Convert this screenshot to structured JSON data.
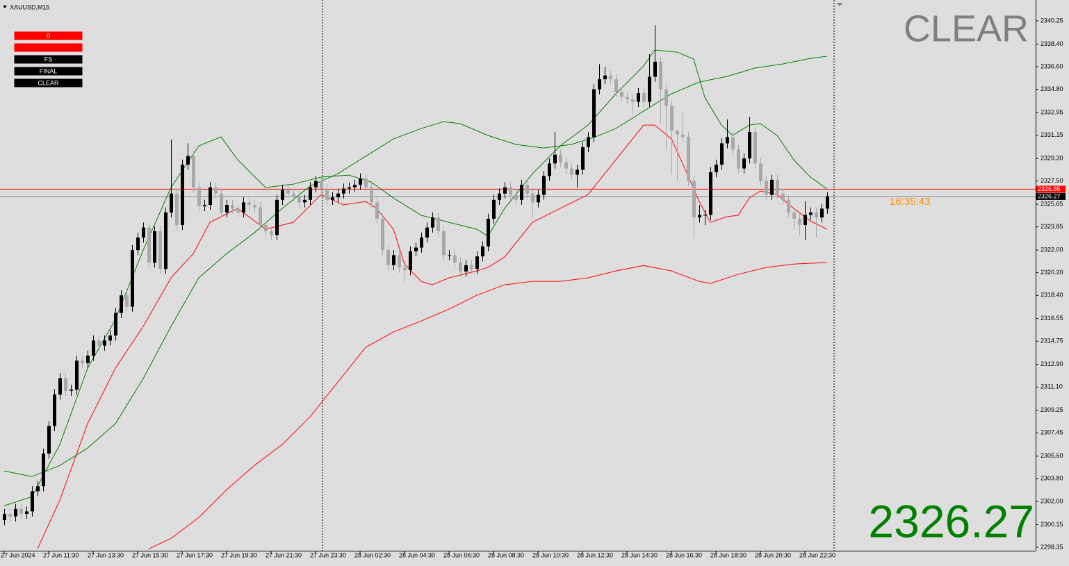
{
  "chart_data": {
    "type": "candlestick",
    "title": "XAUUSD,M15",
    "categories": [
      "27 Jun 2024",
      "27 Jun 11:30",
      "27 Jun 13:30",
      "27 Jun 15:30",
      "27 Jun 17:30",
      "27 Jun 19:30",
      "27 Jun 21:30",
      "27 Jun 23:30",
      "28 Jun 02:30",
      "28 Jun 04:30",
      "28 Jun 06:30",
      "28 Jun 08:30",
      "28 Jun 10:30",
      "28 Jun 12:30",
      "28 Jun 14:30",
      "28 Jun 16:30",
      "28 Jun 18:30",
      "28 Jun 20:30",
      "28 Jun 22:30"
    ],
    "open": [
      2300.5,
      2301.0,
      2300.8,
      2301.4,
      2301.0,
      2301.2,
      2302.8,
      2303.2,
      2305.8,
      2308.0,
      2310.5,
      2311.8,
      2310.8,
      2310.9,
      2313.2,
      2313.0,
      2313.6,
      2314.8,
      2314.4,
      2314.8,
      2315.2,
      2317.0,
      2318.4,
      2317.5,
      2322.0,
      2323.0,
      2323.8,
      2321.0,
      2323.5,
      2320.5,
      2325.0,
      2326.5,
      2324.0,
      2328.8,
      2329.5,
      2327.0,
      2325.5,
      2325.6,
      2327.0,
      2326.5,
      2325.0,
      2325.6,
      2325.3,
      2325.0,
      2325.8,
      2325.6,
      2325.4,
      2324.0,
      2323.5,
      2323.2,
      2326.0,
      2326.8,
      2326.5,
      2326.3,
      2325.8,
      2326.0,
      2327.0,
      2327.5,
      2326.9,
      2326.0,
      2326.2,
      2326.5,
      2326.9,
      2327.0,
      2327.2,
      2327.7,
      2327.0,
      2325.8,
      2324.5,
      2322.0,
      2320.8,
      2321.6,
      2320.6,
      2320.4,
      2321.9,
      2322.2,
      2323.0,
      2323.8,
      2324.6,
      2323.5,
      2321.6,
      2321.6,
      2321.0,
      2320.3,
      2320.8,
      2320.5,
      2321.5,
      2322.3,
      2324.5,
      2326.0,
      2326.5,
      2327.0,
      2326.4,
      2326.0,
      2327.2,
      2326.5,
      2325.8,
      2326.4,
      2327.9,
      2328.9,
      2329.6,
      2329.0,
      2328.5,
      2328.0,
      2328.4,
      2330.2,
      2331.0,
      2334.8,
      2335.6,
      2335.9,
      2335.6,
      2334.6,
      2334.2,
      2334.0,
      2333.8,
      2334.5,
      2333.8,
      2335.8,
      2337.0,
      2334.8,
      2333.5,
      2331.5,
      2331.2,
      2331.0,
      2327.5,
      2324.6,
      2324.8,
      2324.8,
      2328.2,
      2328.8,
      2330.5,
      2331.0,
      2330.0,
      2328.5,
      2329.3,
      2331.4,
      2328.9,
      2327.5,
      2326.4,
      2327.6,
      2326.5,
      2326.0,
      2325.0,
      2324.5,
      2324.0,
      2324.8,
      2325.0,
      2324.6,
      2325.3
    ],
    "high": [
      2301.4,
      2301.4,
      2301.8,
      2301.8,
      2301.6,
      2303.2,
      2303.6,
      2306.2,
      2308.4,
      2310.9,
      2312.2,
      2312.2,
      2311.3,
      2313.6,
      2313.6,
      2314.0,
      2315.2,
      2315.2,
      2315.2,
      2315.6,
      2317.4,
      2318.8,
      2318.8,
      2322.4,
      2323.4,
      2324.2,
      2324.2,
      2323.9,
      2323.9,
      2325.4,
      2330.8,
      2326.9,
      2329.2,
      2330.5,
      2329.9,
      2327.4,
      2326.0,
      2327.4,
      2327.4,
      2326.9,
      2326.0,
      2326.0,
      2325.7,
      2326.2,
      2326.2,
      2326.0,
      2325.8,
      2324.4,
      2323.9,
      2326.4,
      2327.2,
      2327.2,
      2326.9,
      2326.7,
      2326.4,
      2327.4,
      2327.9,
      2327.9,
      2327.3,
      2326.6,
      2326.9,
      2327.3,
      2327.4,
      2327.6,
      2328.1,
      2328.1,
      2327.4,
      2326.2,
      2324.9,
      2322.4,
      2322.0,
      2322.0,
      2321.0,
      2322.3,
      2322.6,
      2323.4,
      2324.2,
      2325.0,
      2325.0,
      2323.9,
      2322.0,
      2322.0,
      2321.4,
      2321.2,
      2321.2,
      2321.9,
      2322.7,
      2324.9,
      2326.4,
      2326.9,
      2327.4,
      2327.4,
      2326.8,
      2327.6,
      2327.6,
      2326.9,
      2326.8,
      2328.3,
      2329.3,
      2331.4,
      2330.0,
      2329.4,
      2328.9,
      2328.8,
      2330.6,
      2331.4,
      2335.2,
      2336.8,
      2336.6,
      2336.3,
      2336.0,
      2335.0,
      2334.6,
      2334.4,
      2334.9,
      2334.9,
      2337.6,
      2339.9,
      2337.4,
      2335.2,
      2333.9,
      2331.6,
      2333.0,
      2331.4,
      2327.9,
      2325.6,
      2325.2,
      2328.6,
      2329.2,
      2330.9,
      2332.4,
      2331.4,
      2330.4,
      2329.7,
      2332.6,
      2331.8,
      2329.3,
      2327.9,
      2328.0,
      2328.0,
      2326.9,
      2326.4,
      2325.4,
      2324.9,
      2325.9,
      2325.4,
      2325.4,
      2325.7,
      2326.6
    ],
    "low": [
      2300.1,
      2300.4,
      2300.4,
      2300.6,
      2300.6,
      2300.8,
      2302.4,
      2302.8,
      2305.4,
      2307.6,
      2310.1,
      2310.4,
      2310.4,
      2310.5,
      2312.6,
      2312.6,
      2313.2,
      2314.0,
      2314.0,
      2314.4,
      2314.8,
      2316.6,
      2317.1,
      2317.1,
      2321.6,
      2322.6,
      2320.6,
      2320.6,
      2320.1,
      2320.1,
      2324.6,
      2323.6,
      2323.6,
      2328.4,
      2326.6,
      2325.1,
      2325.1,
      2325.2,
      2326.1,
      2324.6,
      2324.6,
      2324.9,
      2324.6,
      2324.6,
      2325.2,
      2325.0,
      2323.6,
      2323.1,
      2322.8,
      2322.8,
      2325.6,
      2326.1,
      2325.9,
      2325.4,
      2325.4,
      2325.6,
      2326.6,
      2326.5,
      2325.6,
      2325.6,
      2325.8,
      2326.1,
      2326.5,
      2326.6,
      2326.8,
      2326.6,
      2325.4,
      2324.1,
      2321.6,
      2320.4,
      2320.4,
      2320.2,
      2319.5,
      2320.0,
      2321.5,
      2321.8,
      2322.6,
      2323.4,
      2323.1,
      2321.2,
      2321.2,
      2320.6,
      2319.9,
      2319.9,
      2320.1,
      2320.1,
      2321.1,
      2321.9,
      2324.1,
      2325.6,
      2326.1,
      2326.0,
      2325.6,
      2325.6,
      2326.1,
      2324.6,
      2325.4,
      2326.0,
      2327.5,
      2328.5,
      2328.6,
      2328.1,
      2327.6,
      2327.0,
      2328.0,
      2329.8,
      2330.6,
      2334.4,
      2335.2,
      2335.2,
      2334.2,
      2333.8,
      2333.6,
      2332.8,
      2333.4,
      2333.4,
      2333.4,
      2335.4,
      2332.0,
      2330.0,
      2328.0,
      2327.5,
      2330.6,
      2327.1,
      2323.0,
      2324.2,
      2324.0,
      2324.4,
      2327.8,
      2328.4,
      2330.1,
      2329.6,
      2328.1,
      2328.1,
      2328.9,
      2328.5,
      2327.1,
      2326.0,
      2326.0,
      2326.1,
      2325.6,
      2324.6,
      2323.6,
      2323.2,
      2322.8,
      2324.4,
      2323.0,
      2324.2,
      2324.9
    ],
    "close": [
      2301.0,
      2300.8,
      2301.4,
      2301.0,
      2301.2,
      2302.8,
      2303.2,
      2305.8,
      2308.0,
      2310.5,
      2311.8,
      2310.8,
      2310.9,
      2313.2,
      2313.0,
      2313.6,
      2314.8,
      2314.4,
      2314.8,
      2315.2,
      2317.0,
      2318.4,
      2317.5,
      2322.0,
      2323.0,
      2323.8,
      2321.0,
      2323.5,
      2320.5,
      2325.0,
      2326.5,
      2324.0,
      2328.8,
      2329.5,
      2327.0,
      2325.5,
      2325.6,
      2327.0,
      2326.5,
      2325.0,
      2325.6,
      2325.3,
      2325.0,
      2325.8,
      2325.6,
      2325.4,
      2324.0,
      2323.5,
      2323.2,
      2326.0,
      2326.8,
      2326.5,
      2326.3,
      2325.8,
      2326.0,
      2327.0,
      2327.5,
      2326.9,
      2326.0,
      2326.2,
      2326.5,
      2326.9,
      2327.0,
      2327.2,
      2327.7,
      2327.0,
      2325.8,
      2324.5,
      2322.0,
      2320.8,
      2321.6,
      2320.6,
      2320.4,
      2321.9,
      2322.2,
      2323.0,
      2323.8,
      2324.6,
      2323.5,
      2321.6,
      2321.6,
      2321.0,
      2320.3,
      2320.8,
      2320.5,
      2321.5,
      2322.3,
      2324.5,
      2326.0,
      2326.5,
      2327.0,
      2326.4,
      2326.0,
      2327.2,
      2326.5,
      2325.8,
      2326.4,
      2327.9,
      2328.9,
      2329.6,
      2329.0,
      2328.5,
      2328.0,
      2328.4,
      2330.2,
      2331.0,
      2334.8,
      2335.6,
      2335.9,
      2335.6,
      2334.6,
      2334.2,
      2334.0,
      2333.8,
      2334.5,
      2333.8,
      2335.8,
      2337.0,
      2334.8,
      2333.5,
      2331.5,
      2331.2,
      2331.0,
      2327.5,
      2324.6,
      2324.8,
      2324.8,
      2328.2,
      2328.8,
      2330.5,
      2331.0,
      2330.0,
      2328.5,
      2329.3,
      2331.4,
      2328.9,
      2327.5,
      2326.4,
      2327.6,
      2326.5,
      2326.0,
      2325.0,
      2324.5,
      2324.0,
      2324.8,
      2325.0,
      2324.6,
      2325.3,
      2326.27
    ],
    "up_color": "#000000",
    "down_color": "#a9a9a9",
    "series": [
      {
        "color": "#008000",
        "x": [
          0,
          5,
          10,
          15,
          20,
          25,
          30,
          35,
          39,
          42,
          47,
          52,
          57,
          62,
          66,
          70,
          75,
          80,
          85,
          87,
          90,
          95,
          100,
          105,
          110,
          115,
          117,
          121,
          124,
          126,
          129,
          131,
          134,
          136,
          139,
          142,
          145,
          148
        ],
        "values": [
          2301.65,
          2302.37,
          2306.52,
          2312.6,
          2316.47,
          2322.0,
          2326.98,
          2330.3,
          2331.01,
          2329.19,
          2326.98,
          2327.25,
          2327.81,
          2327.97,
          2327.42,
          2326.15,
          2324.77,
          2324.21,
          2323.66,
          2323.11,
          2325.32,
          2328.08,
          2330.3,
          2331.95,
          2334.44,
          2336.66,
          2337.93,
          2337.76,
          2337.21,
          2334.17,
          2331.95,
          2331.13,
          2331.95,
          2332.07,
          2331.13,
          2329.19,
          2327.81,
          2326.87
        ]
      },
      {
        "color": "#ff0000",
        "x": [
          6,
          10,
          15,
          20,
          25,
          30,
          34,
          37,
          42,
          47,
          52,
          57,
          61,
          65,
          67,
          70,
          72,
          75,
          77,
          80,
          85,
          87,
          90,
          95,
          100,
          105,
          110,
          115,
          117,
          120,
          122,
          125,
          127,
          130,
          132,
          134,
          136,
          139,
          142,
          145,
          148
        ],
        "values": [
          2298.22,
          2302.09,
          2308.18,
          2312.6,
          2315.92,
          2319.79,
          2321.72,
          2324.21,
          2325.32,
          2323.66,
          2324.21,
          2326.42,
          2325.6,
          2325.87,
          2325.32,
          2323.66,
          2320.89,
          2319.51,
          2319.24,
          2319.79,
          2320.34,
          2320.62,
          2321.45,
          2324.21,
          2325.32,
          2326.42,
          2329.19,
          2331.95,
          2331.95,
          2330.85,
          2328.91,
          2325.87,
          2324.21,
          2324.66,
          2324.77,
          2326.15,
          2326.7,
          2326.42,
          2325.32,
          2324.32,
          2323.66
        ]
      },
      {
        "color": "#008000",
        "x": [
          0,
          5,
          10,
          15,
          20,
          25,
          30,
          35,
          40,
          45,
          50,
          55,
          60,
          65,
          70,
          75,
          79,
          82,
          87,
          92,
          97,
          102,
          106,
          110,
          115,
          120,
          125,
          130,
          135,
          140,
          145,
          148
        ],
        "values": [
          2304.42,
          2303.97,
          2304.86,
          2306.24,
          2308.18,
          2311.77,
          2315.92,
          2319.79,
          2321.72,
          2323.38,
          2325.32,
          2327.09,
          2328.08,
          2329.47,
          2330.85,
          2331.68,
          2332.23,
          2332.07,
          2331.13,
          2330.41,
          2330.13,
          2330.41,
          2330.96,
          2331.68,
          2333.06,
          2334.44,
          2335.38,
          2335.83,
          2336.49,
          2336.82,
          2337.26,
          2337.43
        ]
      },
      {
        "color": "#ff0000",
        "x": [
          26,
          30,
          35,
          40,
          45,
          50,
          55,
          60,
          65,
          70,
          75,
          80,
          85,
          90,
          95,
          100,
          105,
          110,
          115,
          120,
          125,
          127,
          132,
          137,
          142,
          148
        ],
        "values": [
          2298.22,
          2299.05,
          2300.71,
          2302.92,
          2304.86,
          2306.52,
          2308.73,
          2311.49,
          2314.26,
          2315.48,
          2316.36,
          2317.3,
          2318.41,
          2319.24,
          2319.51,
          2319.51,
          2319.79,
          2320.34,
          2320.78,
          2320.34,
          2319.51,
          2319.35,
          2320.07,
          2320.62,
          2320.89,
          2321.01
        ]
      }
    ],
    "ylim": [
      2298.07,
      2341.91
    ],
    "yticks": [
      2340.25,
      {
        "value": 2338.4,
        "label": "2338.40"
      },
      {
        "value": 2336.6,
        "label": "2336.60"
      },
      {
        "value": 2334.8,
        "label": "2334.80"
      },
      2332.95,
      2331.15,
      {
        "value": 2329.3,
        "label": "2329.30"
      },
      {
        "value": 2327.5,
        "label": "2327.50"
      },
      2325.65,
      2323.85,
      {
        "value": 2322.0,
        "label": "2322.00"
      },
      {
        "value": 2320.2,
        "label": "2320.20"
      },
      {
        "value": 2318.4,
        "label": "2318.40"
      },
      2316.55,
      2314.75,
      {
        "value": 2312.9,
        "label": "2312.90"
      },
      {
        "value": 2311.1,
        "label": "2311.10"
      },
      2309.25,
      2307.45,
      {
        "value": 2305.6,
        "label": "2305.60"
      },
      {
        "value": 2303.8,
        "label": "2303.80"
      },
      {
        "value": 2302.0,
        "label": "2302.00"
      },
      2300.15,
      2298.35
    ],
    "grid": false,
    "level": {
      "value": 2326.85,
      "color": "#ff0000"
    },
    "bid": {
      "value": 2326.27,
      "color": "#778899"
    }
  },
  "timer": "16:35:43",
  "status_text": "CLEAR",
  "buttons": [
    {
      "label": "0",
      "color": "#ff0000"
    },
    {
      "color": "#ff0000"
    },
    {
      "label": "FS",
      "color": "#000000"
    },
    {
      "label": "FINAL",
      "color": "#000000"
    },
    {
      "label": "CLEAR",
      "color": "#000000"
    }
  ]
}
